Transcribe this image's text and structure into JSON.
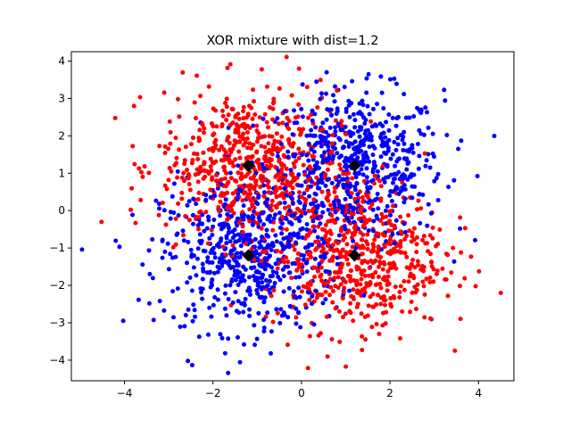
{
  "chart_data": {
    "type": "scatter",
    "title": "XOR mixture with dist=1.2",
    "xlabel": "",
    "ylabel": "",
    "xlim": [
      -5.2,
      4.8
    ],
    "ylim": [
      -4.55,
      4.25
    ],
    "xticks": [
      -4,
      -2,
      0,
      2,
      4
    ],
    "yticks": [
      -4,
      -3,
      -2,
      -1,
      0,
      1,
      2,
      3,
      4
    ],
    "xtick_labels": [
      "−4",
      "−2",
      "0",
      "2",
      "4"
    ],
    "ytick_labels": [
      "−4",
      "−3",
      "−2",
      "−1",
      "0",
      "1",
      "2",
      "3",
      "4"
    ],
    "grid": false,
    "legend": "none",
    "series": [
      {
        "color": "#0000ff",
        "distribution": "gaussian",
        "centers": [
          [
            1.2,
            1.2
          ],
          [
            -1.2,
            -1.2
          ]
        ],
        "std": 1.0,
        "n_points_per_center": 600
      },
      {
        "color": "#ff0000",
        "distribution": "gaussian",
        "centers": [
          [
            -1.2,
            1.2
          ],
          [
            1.2,
            -1.2
          ]
        ],
        "std": 1.0,
        "n_points_per_center": 600
      },
      {
        "color": "#000000",
        "marker": "diamond",
        "points": [
          [
            -1.2,
            1.2
          ],
          [
            1.2,
            1.2
          ],
          [
            -1.2,
            -1.2
          ],
          [
            1.2,
            -1.2
          ]
        ]
      }
    ]
  }
}
